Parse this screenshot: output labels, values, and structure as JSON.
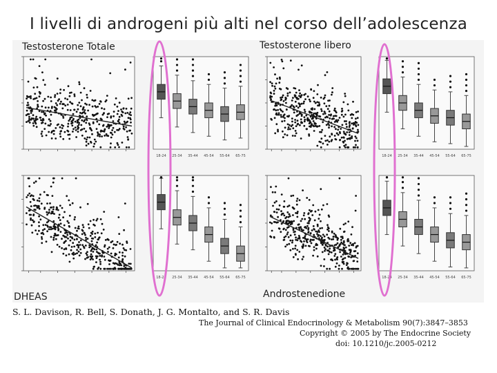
{
  "slide": {
    "title": "I livelli di androgeni più alti nel corso dell’adolescenza",
    "labels": {
      "total_t": "Testosterone Totale",
      "free_t": "Testosterone libero",
      "dheas": "DHEAS",
      "androstenedione": "Androstenedione"
    },
    "citation": {
      "authors": "S. L. Davison, R. Bell, S. Donath, J. G. Montalto, and S. R. Davis",
      "journal": "The Journal of Clinical Endocrinology & Metabolism 90(7):3847–3853",
      "copyright": "Copyright © 2005 by The Endocrine Society",
      "doi": "doi: 10.1210/jc.2005-0212"
    },
    "colors": {
      "highlight": "#e070d0",
      "box_dark": "#555555",
      "box_light": "#999999"
    }
  },
  "chart_data": [
    {
      "type": "scatter",
      "panel": "Testosterone Totale",
      "trend": "slight decline with age",
      "x": [
        18,
        25,
        35,
        45,
        55,
        65,
        75
      ]
    },
    {
      "type": "box",
      "panel": "Testosterone Totale",
      "categories": [
        "18-24",
        "25-34",
        "35-44",
        "45-54",
        "55-64",
        "65-75"
      ],
      "medians": [
        0.62,
        0.52,
        0.46,
        0.42,
        0.38,
        0.4
      ]
    },
    {
      "type": "scatter",
      "panel": "Testosterone libero",
      "trend": "decline with age",
      "x": [
        18,
        25,
        35,
        45,
        55,
        65,
        75
      ]
    },
    {
      "type": "box",
      "panel": "Testosterone libero",
      "categories": [
        "18-24",
        "25-34",
        "35-44",
        "45-54",
        "55-64",
        "65-75"
      ],
      "medians": [
        0.68,
        0.5,
        0.42,
        0.36,
        0.34,
        0.3
      ]
    },
    {
      "type": "scatter",
      "panel": "DHEAS",
      "trend": "strong decline with age",
      "x": [
        18,
        25,
        35,
        45,
        55,
        65,
        75
      ]
    },
    {
      "type": "box",
      "panel": "DHEAS",
      "categories": [
        "18-24",
        "25-34",
        "35-44",
        "45-54",
        "55-64",
        "65-75"
      ],
      "medians": [
        0.72,
        0.56,
        0.5,
        0.38,
        0.26,
        0.18
      ]
    },
    {
      "type": "scatter",
      "panel": "Androstenedione",
      "trend": "decline with age",
      "x": [
        18,
        25,
        35,
        45,
        55,
        65,
        75
      ]
    },
    {
      "type": "box",
      "panel": "Androstenedione",
      "categories": [
        "18-24",
        "25-34",
        "35-44",
        "45-54",
        "55-64",
        "65-75"
      ],
      "medians": [
        0.66,
        0.54,
        0.46,
        0.38,
        0.32,
        0.3
      ]
    }
  ]
}
